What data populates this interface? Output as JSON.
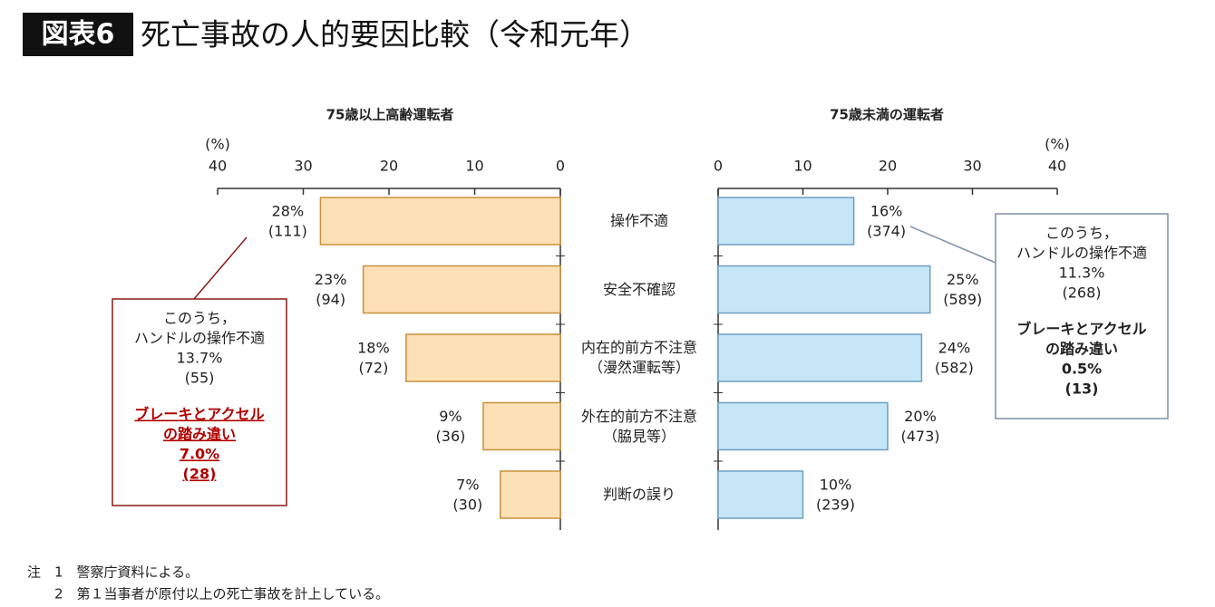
{
  "title_badge": "図表6",
  "title": "死亡事故の人的要因比較（令和元年）",
  "notes": [
    "注　1　警察庁資料による。",
    "　　2　第１当事者が原付以上の死亡事故を計上している。"
  ],
  "chart_data": [
    {
      "type": "bar",
      "orientation": "horizontal",
      "direction": "reversed",
      "title": "75歳以上高齢運転者",
      "x_label": "(%)",
      "categories": [
        "操作不適",
        "安全不確認",
        "内在的前方不注意\n（漫然運転等）",
        "外在的前方不注意\n（脇見等）",
        "判断の誤り"
      ],
      "values": [
        28,
        23,
        18,
        9,
        7
      ],
      "value_labels": [
        "28%",
        "23%",
        "18%",
        "9%",
        "7%"
      ],
      "count_labels": [
        "(111)",
        "(94)",
        "(72)",
        "(36)",
        "(30)"
      ],
      "xlim": [
        0,
        40
      ],
      "xticks": [
        0,
        10,
        20,
        30,
        40
      ],
      "color": "#fde0b5",
      "edge_color": "#c8903c",
      "annotation": {
        "lines": [
          "このうち，",
          "ハンドルの操作不適",
          "13.7%",
          "(55)"
        ],
        "highlight_lines": [
          "ブレーキとアクセル",
          "の踏み違い",
          "7.0%",
          "(28)"
        ],
        "border_color": "#8b1a1a",
        "highlight_color": "#b00000"
      }
    },
    {
      "type": "bar",
      "orientation": "horizontal",
      "direction": "normal",
      "title": "75歳未満の運転者",
      "x_label": "(%)",
      "values": [
        16,
        25,
        24,
        20,
        10
      ],
      "value_labels": [
        "16%",
        "25%",
        "24%",
        "20%",
        "10%"
      ],
      "count_labels": [
        "(374)",
        "(589)",
        "(582)",
        "(473)",
        "(239)"
      ],
      "xlim": [
        0,
        40
      ],
      "xticks": [
        0,
        10,
        20,
        30,
        40
      ],
      "color": "#c5e6f7",
      "edge_color": "#6f9fbf",
      "annotation": {
        "lines": [
          "このうち，",
          "ハンドルの操作不適",
          "11.3%",
          "(268)"
        ],
        "highlight_lines": [
          "ブレーキとアクセル",
          "の踏み違い",
          "0.5%",
          "(13)"
        ],
        "border_color": "#7e90a8",
        "highlight_color": "#222"
      }
    }
  ]
}
